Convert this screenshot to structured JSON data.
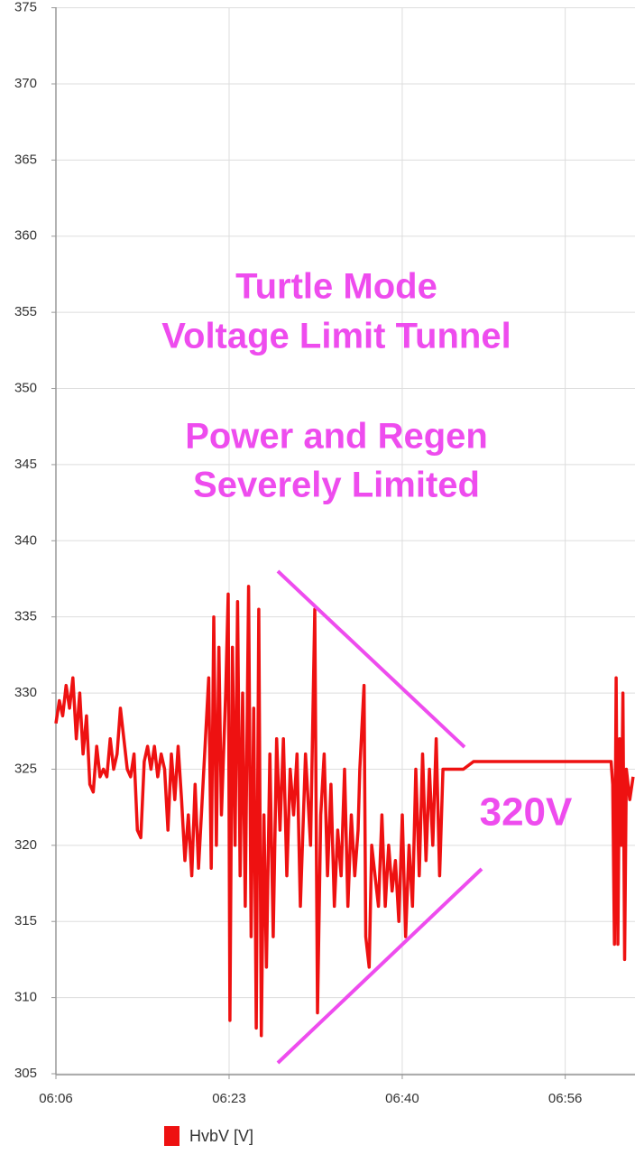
{
  "chart_data": {
    "type": "line",
    "x": [
      "06:06:00",
      "06:06:20",
      "06:06:40",
      "06:07:00",
      "06:07:20",
      "06:07:40",
      "06:08:00",
      "06:08:20",
      "06:08:40",
      "06:09:00",
      "06:09:20",
      "06:09:40",
      "06:10:00",
      "06:10:20",
      "06:10:40",
      "06:11:00",
      "06:11:20",
      "06:11:40",
      "06:12:00",
      "06:12:20",
      "06:12:40",
      "06:13:00",
      "06:13:20",
      "06:13:40",
      "06:14:00",
      "06:14:20",
      "06:14:40",
      "06:15:00",
      "06:15:20",
      "06:15:40",
      "06:16:00",
      "06:16:20",
      "06:16:40",
      "06:17:00",
      "06:17:20",
      "06:17:40",
      "06:18:00",
      "06:18:20",
      "06:18:40",
      "06:19:00",
      "06:19:20",
      "06:19:40",
      "06:20:00",
      "06:21:00",
      "06:21:15",
      "06:21:30",
      "06:21:45",
      "06:22:00",
      "06:22:15",
      "06:22:40",
      "06:22:55",
      "06:23:05",
      "06:23:20",
      "06:23:35",
      "06:23:50",
      "06:24:05",
      "06:24:20",
      "06:24:35",
      "06:24:55",
      "06:25:10",
      "06:25:25",
      "06:25:40",
      "06:25:55",
      "06:26:10",
      "06:26:25",
      "06:26:40",
      "06:27:00",
      "06:27:20",
      "06:27:40",
      "06:28:00",
      "06:28:20",
      "06:28:40",
      "06:29:00",
      "06:29:20",
      "06:29:40",
      "06:30:00",
      "06:30:30",
      "06:31:00",
      "06:31:25",
      "06:31:41",
      "06:32:00",
      "06:32:20",
      "06:32:40",
      "06:33:00",
      "06:33:20",
      "06:33:40",
      "06:34:00",
      "06:34:20",
      "06:34:40",
      "06:35:00",
      "06:35:20",
      "06:35:40",
      "06:35:50",
      "06:36:15",
      "06:36:25",
      "06:36:45",
      "06:37:00",
      "06:37:20",
      "06:37:40",
      "06:38:00",
      "06:38:20",
      "06:38:40",
      "06:39:00",
      "06:39:20",
      "06:39:40",
      "06:40:00",
      "06:40:20",
      "06:40:40",
      "06:41:00",
      "06:41:20",
      "06:41:40",
      "06:42:00",
      "06:42:20",
      "06:42:40",
      "06:43:00",
      "06:43:20",
      "06:43:40",
      "06:44:00",
      "06:44:30",
      "06:45:30",
      "06:46:00",
      "06:47:00",
      "06:48:00",
      "07:00:30",
      "07:00:40",
      "07:00:50",
      "07:01:00",
      "07:01:10",
      "07:01:20",
      "07:01:30",
      "07:01:40",
      "07:01:50",
      "07:02:00",
      "07:02:20",
      "07:02:40"
    ],
    "series": [
      {
        "name": "HvbV [V]",
        "color": "#ee1111",
        "values": [
          328,
          329.5,
          328.5,
          330.5,
          329,
          331,
          327,
          330,
          326,
          328.5,
          324,
          323.5,
          326.5,
          324.5,
          325,
          324.5,
          327,
          325,
          326,
          329,
          327,
          325,
          324.5,
          326,
          321,
          320.5,
          325.5,
          326.5,
          325,
          326.5,
          324.5,
          326,
          325,
          321,
          326,
          323,
          326.5,
          323,
          319,
          322,
          318,
          324,
          318.5,
          331,
          318.5,
          335,
          320,
          333,
          322,
          330,
          336.5,
          308.5,
          333,
          320,
          336,
          318,
          330,
          316,
          337,
          314,
          329,
          308,
          335.5,
          307.5,
          322,
          312,
          326,
          314,
          327,
          321,
          327,
          318,
          325,
          322,
          326,
          316,
          326,
          320,
          335.5,
          309,
          322,
          326,
          318,
          324,
          316,
          321,
          318,
          325,
          316,
          322,
          318,
          321,
          325,
          330.5,
          314,
          312,
          320,
          318,
          316,
          322,
          316,
          320,
          317,
          319,
          315,
          322,
          314,
          320,
          316,
          325,
          318,
          326,
          319,
          325,
          320,
          327,
          318,
          325,
          325,
          325,
          325,
          325.5,
          325.5,
          325.5,
          324,
          313.5,
          331,
          313.5,
          327,
          320,
          330,
          312.5,
          325,
          323,
          324.5
        ]
      }
    ],
    "xlim": [
      "06:06:00",
      "07:02:51"
    ],
    "xticks": [
      "06:06",
      "06:23",
      "06:40",
      "06:56"
    ],
    "ylim": [
      305,
      375
    ],
    "yticks": [
      305,
      310,
      315,
      320,
      325,
      330,
      335,
      340,
      345,
      350,
      355,
      360,
      365,
      370,
      375
    ],
    "grid": true,
    "annotations": [
      "Turtle Mode",
      "Voltage Limit Tunnel",
      "Power and Regen",
      "Severely Limited",
      "320V"
    ]
  }
}
